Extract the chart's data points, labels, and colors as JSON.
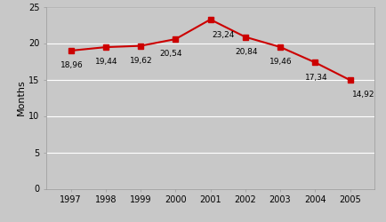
{
  "years": [
    1997,
    1998,
    1999,
    2000,
    2001,
    2002,
    2003,
    2004,
    2005
  ],
  "values": [
    18.96,
    19.44,
    19.62,
    20.54,
    23.24,
    20.84,
    19.46,
    17.34,
    14.92
  ],
  "labels": [
    "18,96",
    "19,44",
    "19,62",
    "20,54",
    "23,24",
    "20,84",
    "19,46",
    "17,34",
    "14,92"
  ],
  "line_color": "#cc0000",
  "marker_color": "#cc0000",
  "marker_style": "s",
  "marker_size": 4,
  "line_width": 1.5,
  "ylabel": "Months",
  "ylim": [
    0,
    25
  ],
  "yticks": [
    0,
    5,
    10,
    15,
    20,
    25
  ],
  "background_color": "#c8c8c8",
  "plot_bg_color": "#c8c8c8",
  "grid_color": "#ffffff",
  "label_fontsize": 6.5,
  "axis_fontsize": 7,
  "ylabel_fontsize": 8,
  "label_offsets_x": [
    -0.3,
    -0.3,
    -0.3,
    -0.45,
    0.05,
    -0.3,
    -0.3,
    -0.3,
    0.05
  ],
  "label_offsets_y": [
    -1.5,
    -1.5,
    -1.5,
    -1.5,
    -1.6,
    -1.5,
    -1.5,
    -1.5,
    -1.5
  ]
}
